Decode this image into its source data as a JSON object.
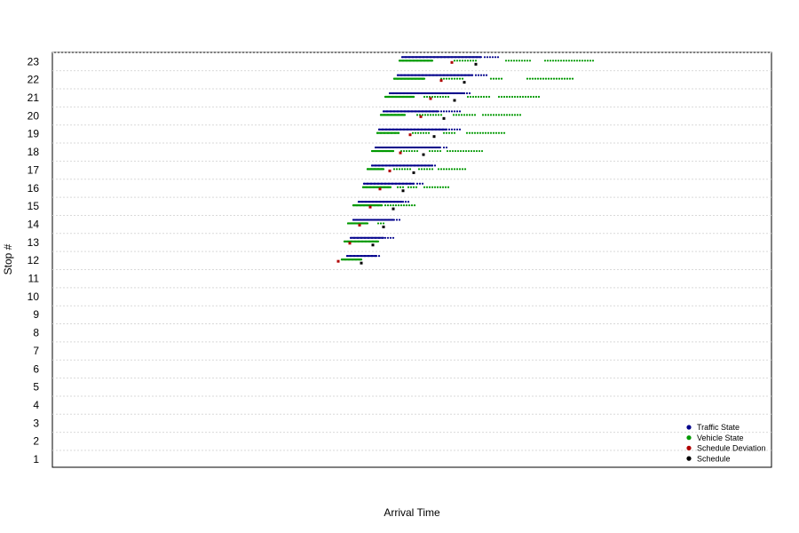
{
  "chart_data": {
    "type": "scatter",
    "title": "",
    "xlabel": "Arrival Time",
    "ylabel": "Stop #",
    "x_ticks_shown": false,
    "ylim": [
      0.5,
      23.6
    ],
    "y_ticks": [
      1,
      2,
      3,
      4,
      5,
      6,
      7,
      8,
      9,
      10,
      11,
      12,
      13,
      14,
      15,
      16,
      17,
      18,
      19,
      20,
      21,
      22,
      23
    ],
    "grid": "horizontal dotted",
    "legend_position": "bottom-right",
    "series": [
      {
        "name": "Traffic State",
        "color": "#00008b",
        "points_by_stop": [
          {
            "stop": 12,
            "x_ranges": [
              [
                391,
                423
              ],
              [
                424,
                428
              ]
            ]
          },
          {
            "stop": 13,
            "x_ranges": [
              [
                395,
                432
              ],
              [
                434,
                444
              ]
            ]
          },
          {
            "stop": 14,
            "x_ranges": [
              [
                398,
                444
              ],
              [
                447,
                450
              ]
            ]
          },
          {
            "stop": 15,
            "x_ranges": [
              [
                404,
                452
              ],
              [
                454,
                460
              ]
            ]
          },
          {
            "stop": 16,
            "x_ranges": [
              [
                410,
                466
              ],
              [
                470,
                476
              ]
            ]
          },
          {
            "stop": 17,
            "x_ranges": [
              [
                419,
                487
              ],
              [
                490,
                492
              ]
            ]
          },
          {
            "stop": 18,
            "x_ranges": [
              [
                423,
                496
              ],
              [
                500,
                503
              ]
            ]
          },
          {
            "stop": 19,
            "x_ranges": [
              [
                427,
                503
              ],
              [
                506,
                519
              ]
            ]
          },
          {
            "stop": 20,
            "x_ranges": [
              [
                432,
                494
              ],
              [
                497,
                520
              ]
            ]
          },
          {
            "stop": 21,
            "x_ranges": [
              [
                439,
                523
              ],
              [
                526,
                531
              ]
            ]
          },
          {
            "stop": 22,
            "x_ranges": [
              [
                448,
                532
              ],
              [
                536,
                549
              ]
            ]
          },
          {
            "stop": 23,
            "x_ranges": [
              [
                453,
                542
              ],
              [
                546,
                562
              ]
            ]
          }
        ]
      },
      {
        "name": "Vehicle State",
        "color": "#009900",
        "points_by_stop": [
          {
            "stop": 12,
            "x_ranges": [
              [
                385,
                407
              ]
            ]
          },
          {
            "stop": 13,
            "x_ranges": [
              [
                388,
                426
              ]
            ]
          },
          {
            "stop": 14,
            "x_ranges": [
              [
                392,
                414
              ],
              [
                426,
                433
              ]
            ]
          },
          {
            "stop": 15,
            "x_ranges": [
              [
                398,
                430
              ],
              [
                434,
                467
              ]
            ]
          },
          {
            "stop": 16,
            "x_ranges": [
              [
                409,
                440
              ],
              [
                448,
                456
              ],
              [
                460,
                470
              ],
              [
                478,
                507
              ]
            ]
          },
          {
            "stop": 17,
            "x_ranges": [
              [
                414,
                432
              ],
              [
                444,
                463
              ],
              [
                472,
                488
              ],
              [
                494,
                526
              ]
            ]
          },
          {
            "stop": 18,
            "x_ranges": [
              [
                419,
                443
              ],
              [
                452,
                472
              ],
              [
                484,
                496
              ],
              [
                504,
                543
              ]
            ]
          },
          {
            "stop": 19,
            "x_ranges": [
              [
                425,
                449
              ],
              [
                465,
                483
              ],
              [
                500,
                512
              ],
              [
                526,
                568
              ]
            ]
          },
          {
            "stop": 20,
            "x_ranges": [
              [
                429,
                456
              ],
              [
                470,
                498
              ],
              [
                511,
                536
              ],
              [
                544,
                587
              ]
            ]
          },
          {
            "stop": 21,
            "x_ranges": [
              [
                434,
                466
              ],
              [
                478,
                505
              ],
              [
                527,
                551
              ],
              [
                562,
                607
              ]
            ]
          },
          {
            "stop": 22,
            "x_ranges": [
              [
                444,
                478
              ],
              [
                497,
                523
              ],
              [
                553,
                567
              ],
              [
                594,
                646
              ]
            ]
          },
          {
            "stop": 23,
            "x_ranges": [
              [
                450,
                487
              ],
              [
                512,
                536
              ],
              [
                570,
                598
              ],
              [
                614,
                670
              ]
            ]
          }
        ]
      },
      {
        "name": "Schedule Deviation",
        "color": "#b00000",
        "points": [
          [
            381,
            12
          ],
          [
            394,
            13
          ],
          [
            405,
            14
          ],
          [
            417,
            15
          ],
          [
            428,
            16
          ],
          [
            439,
            17
          ],
          [
            451,
            18
          ],
          [
            462,
            19
          ],
          [
            474,
            20
          ],
          [
            485,
            21
          ],
          [
            497,
            22
          ],
          [
            509,
            23
          ]
        ]
      },
      {
        "name": "Schedule",
        "color": "#000000",
        "points": [
          [
            407,
            12
          ],
          [
            420,
            13
          ],
          [
            432,
            14
          ],
          [
            443,
            15
          ],
          [
            454,
            16
          ],
          [
            466,
            17
          ],
          [
            477,
            18
          ],
          [
            489,
            19
          ],
          [
            500,
            20
          ],
          [
            512,
            21
          ],
          [
            523,
            22
          ],
          [
            536,
            23
          ]
        ]
      }
    ]
  }
}
